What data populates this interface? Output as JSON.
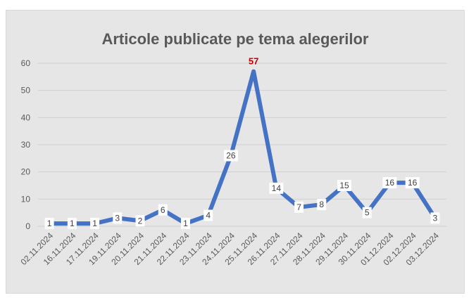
{
  "chart_data": {
    "type": "line",
    "title": "Articole publicate pe tema alegerilor",
    "xlabel": "",
    "ylabel": "",
    "ylim": [
      0,
      60
    ],
    "yticks": [
      0,
      10,
      20,
      30,
      40,
      50,
      60
    ],
    "grid": true,
    "legend": "none",
    "categories": [
      "02.11.2024",
      "16.11.2024",
      "17.11.2024",
      "19.11.2024",
      "20.11.2024",
      "21.11.2024",
      "22.11.2024",
      "23.11.2024",
      "24.11.2024",
      "25.11.2024",
      "26.11.2024",
      "27.11.2024",
      "28.11.2024",
      "29.11.2024",
      "30.11.2024",
      "01.12.2024",
      "02.12.2024",
      "03.12.2024"
    ],
    "series": [
      {
        "values": [
          1,
          1,
          1,
          3,
          2,
          6,
          1,
          4,
          26,
          57,
          14,
          7,
          8,
          15,
          5,
          16,
          16,
          3
        ],
        "color": "#4472c4"
      }
    ],
    "highlight": {
      "index": 9,
      "color": "#c00000"
    }
  }
}
